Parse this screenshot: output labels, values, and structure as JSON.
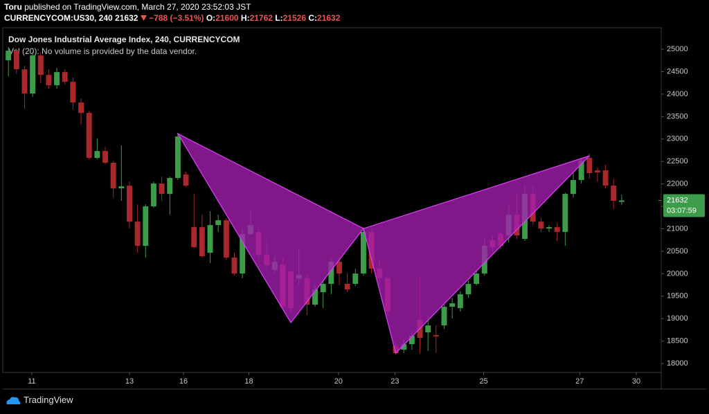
{
  "header": {
    "author": "Toru",
    "published": "published on TradingView.com, March 27, 2020 23:52:03 JST",
    "symbol": "CURRENCYCOM:US30, 240",
    "change": "−788 (−3.51%)",
    "open_label": "O:",
    "high_label": "H:",
    "low_label": "L:",
    "close_label": "C:"
  },
  "footer": {
    "brand": "TradingView"
  },
  "chart_data": {
    "type": "candlestick",
    "title": "Dow Jones Industrial Average Index, 240, CURRENCYCOM",
    "subtitle": "Vol (20): No volume is provided by the data vendor.",
    "countdown": "03:07:59",
    "up_color": "#3d9c4a",
    "down_color": "#a8282e",
    "pattern_color": "#a41fb0",
    "pattern_stroke": "#e040fb",
    "grid": false,
    "open": [
      24753,
      24969,
      24553,
      24013,
      24861,
      24429,
      24198,
      24491,
      24275,
      23813,
      23581,
      22579,
      22733,
      22471,
      21900,
      21962,
      21160,
      20621,
      21500,
      22009,
      21777,
      22132,
      22209,
      21037,
      21037,
      20466,
      21083,
      21191,
      20359,
      20004,
      20883,
      20929,
      20420,
      20081,
      20204,
      20050,
      19896,
      19896,
      19310,
      19588,
      19773,
      20266,
      19773,
      19773,
      20004,
      20929,
      20112,
      19896,
      18395,
      18308,
      18431,
      18971,
      18693,
      18632,
      18848,
      19264,
      19233,
      19541,
      19773,
      20004,
      20744,
      20883,
      20852,
      21315,
      20775,
      21777,
      21160,
      21006,
      21037,
      20929,
      21777,
      22086,
      22579,
      22302,
      22302,
      21962,
      21600
    ],
    "high": [
      25046,
      25015,
      24630,
      24938,
      24938,
      24553,
      24584,
      24553,
      24368,
      23905,
      23627,
      23011,
      22826,
      22517,
      22857,
      22055,
      21546,
      21546,
      22055,
      22163,
      22163,
      23134,
      22271,
      21777,
      21315,
      21392,
      21315,
      21238,
      20466,
      21006,
      21392,
      21006,
      20775,
      20389,
      20359,
      20081,
      20544,
      20004,
      19773,
      19850,
      20359,
      20389,
      20004,
      20112,
      21006,
      21006,
      20312,
      19958,
      18462,
      18539,
      18724,
      19927,
      19079,
      18848,
      19310,
      19464,
      19612,
      19850,
      20081,
      20775,
      20852,
      20929,
      21546,
      21777,
      21962,
      21962,
      21238,
      21083,
      21129,
      21808,
      22240,
      22579,
      22671,
      22363,
      22425,
      22117,
      21762
    ],
    "low": [
      24399,
      24460,
      23674,
      23936,
      24245,
      24121,
      24121,
      24214,
      23658,
      23319,
      22548,
      22548,
      22440,
      21700,
      21623,
      21006,
      20466,
      20359,
      21469,
      21623,
      21315,
      22086,
      21931,
      20574,
      20359,
      20235,
      20929,
      20312,
      19958,
      19896,
      20852,
      20359,
      20081,
      20004,
      19233,
      19125,
      19773,
      19079,
      19264,
      19233,
      19541,
      19742,
      19588,
      19726,
      19958,
      20004,
      19773,
      19079,
      18200,
      18230,
      18308,
      18230,
      18277,
      18230,
      18770,
      19002,
      19156,
      19464,
      19742,
      19958,
      20466,
      20544,
      20698,
      20775,
      20729,
      21083,
      20929,
      20929,
      20729,
      20621,
      21700,
      22009,
      22117,
      22055,
      21900,
      21438,
      21526
    ],
    "close": [
      24969,
      24553,
      24013,
      24861,
      24429,
      24198,
      24491,
      24275,
      23813,
      23581,
      22579,
      22733,
      22471,
      21900,
      21947,
      21160,
      20621,
      21500,
      22009,
      21777,
      22132,
      23057,
      21962,
      20590,
      20389,
      21083,
      21191,
      20359,
      20004,
      20883,
      21083,
      20420,
      20189,
      20266,
      19264,
      19233,
      19973,
      19310,
      19649,
      19773,
      20266,
      20004,
      19649,
      20004,
      20929,
      20112,
      19896,
      19156,
      18230,
      18431,
      18616,
      18570,
      18848,
      18601,
      19264,
      19341,
      19541,
      19773,
      20004,
      20621,
      20590,
      20621,
      21315,
      20852,
      21777,
      21160,
      21006,
      21037,
      20929,
      21777,
      22086,
      22517,
      22240,
      22255,
      21962,
      21623,
      21632
    ],
    "harmonic_pattern": {
      "x": [
        21,
        35,
        44,
        48,
        72
      ],
      "y": [
        23119,
        18909,
        21006,
        18230,
        22625
      ]
    },
    "xlim": [
      -0.7,
      80.9
    ],
    "xticks": [
      {
        "value": 2.9,
        "label": "11"
      },
      {
        "value": 15,
        "label": "13"
      },
      {
        "value": 21.7,
        "label": "16"
      },
      {
        "value": 29.8,
        "label": "18"
      },
      {
        "value": 40.9,
        "label": "20"
      },
      {
        "value": 47.9,
        "label": "23"
      },
      {
        "value": 58.9,
        "label": "25"
      },
      {
        "value": 70.8,
        "label": "27"
      },
      {
        "value": 77.8,
        "label": "30"
      }
    ],
    "ylim": [
      17800,
      25480
    ],
    "yticks": [
      18000,
      18500,
      19000,
      19500,
      20000,
      20500,
      21000,
      21500,
      22000,
      22500,
      23000,
      23500,
      24000,
      24500,
      25000
    ]
  }
}
